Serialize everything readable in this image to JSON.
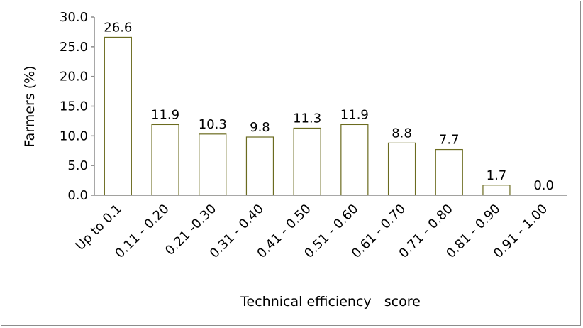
{
  "chart_data": {
    "type": "bar",
    "categories": [
      "Up to 0.1",
      "0.11 - 0.20",
      "0.21 -0.30",
      "0.31 - 0.40",
      "0.41 - 0.50",
      "0.51 - 0.60",
      "0.61 - 0.70",
      "0.71 - 0.80",
      "0.81 - 0.90",
      "0.91 - 1.00"
    ],
    "values": [
      26.6,
      11.9,
      10.3,
      9.8,
      11.3,
      11.9,
      8.8,
      7.7,
      1.7,
      0.0
    ],
    "data_labels": [
      "26.6",
      "11.9",
      "10.3",
      "9.8",
      "11.3",
      "11.9",
      "8.8",
      "7.7",
      "1.7",
      "0.0"
    ],
    "yticks": [
      "0.0",
      "5.0",
      "10.0",
      "15.0",
      "20.0",
      "25.0",
      "30.0"
    ],
    "ylim": [
      0,
      30
    ],
    "ylabel": "Farmers (%)",
    "xlabel": "Technical efficiency   score",
    "grid": false,
    "bar_fill": "#ffffff",
    "bar_stroke": "#6b6b1f",
    "axis_color": "#8c8c8c"
  }
}
